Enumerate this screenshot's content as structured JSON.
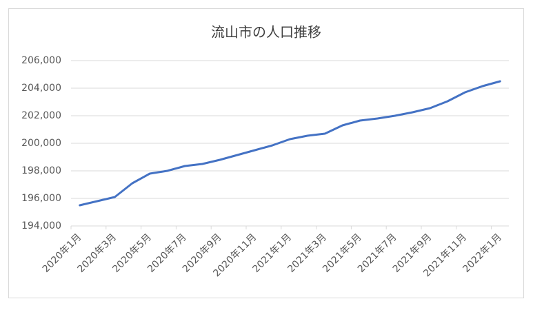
{
  "chart_data": {
    "type": "line",
    "title": "流山市の人口推移",
    "categories": [
      "2020年1月",
      null,
      "2020年3月",
      null,
      "2020年5月",
      null,
      "2020年7月",
      null,
      "2020年9月",
      null,
      "2020年11月",
      null,
      "2021年1月",
      null,
      "2021年3月",
      null,
      "2021年5月",
      null,
      "2021年7月",
      null,
      "2021年9月",
      null,
      "2021年11月",
      null,
      "2022年1月"
    ],
    "values": [
      195500,
      195800,
      196100,
      197100,
      197800,
      198000,
      198350,
      198500,
      198800,
      199150,
      199500,
      199850,
      200300,
      200550,
      200700,
      201300,
      201650,
      201800,
      202000,
      202250,
      202550,
      203050,
      203700,
      204150,
      204500
    ],
    "color": "#4472c4",
    "ylim": [
      194000,
      206000
    ],
    "yticks": [
      {
        "value": 194000,
        "label": "194,000"
      },
      {
        "value": 196000,
        "label": "196,000"
      },
      {
        "value": 198000,
        "label": "198,000"
      },
      {
        "value": 200000,
        "label": "200,000"
      },
      {
        "value": 202000,
        "label": "202,000"
      },
      {
        "value": 204000,
        "label": "204,000"
      },
      {
        "value": 206000,
        "label": "206,000"
      }
    ],
    "grid": true
  }
}
